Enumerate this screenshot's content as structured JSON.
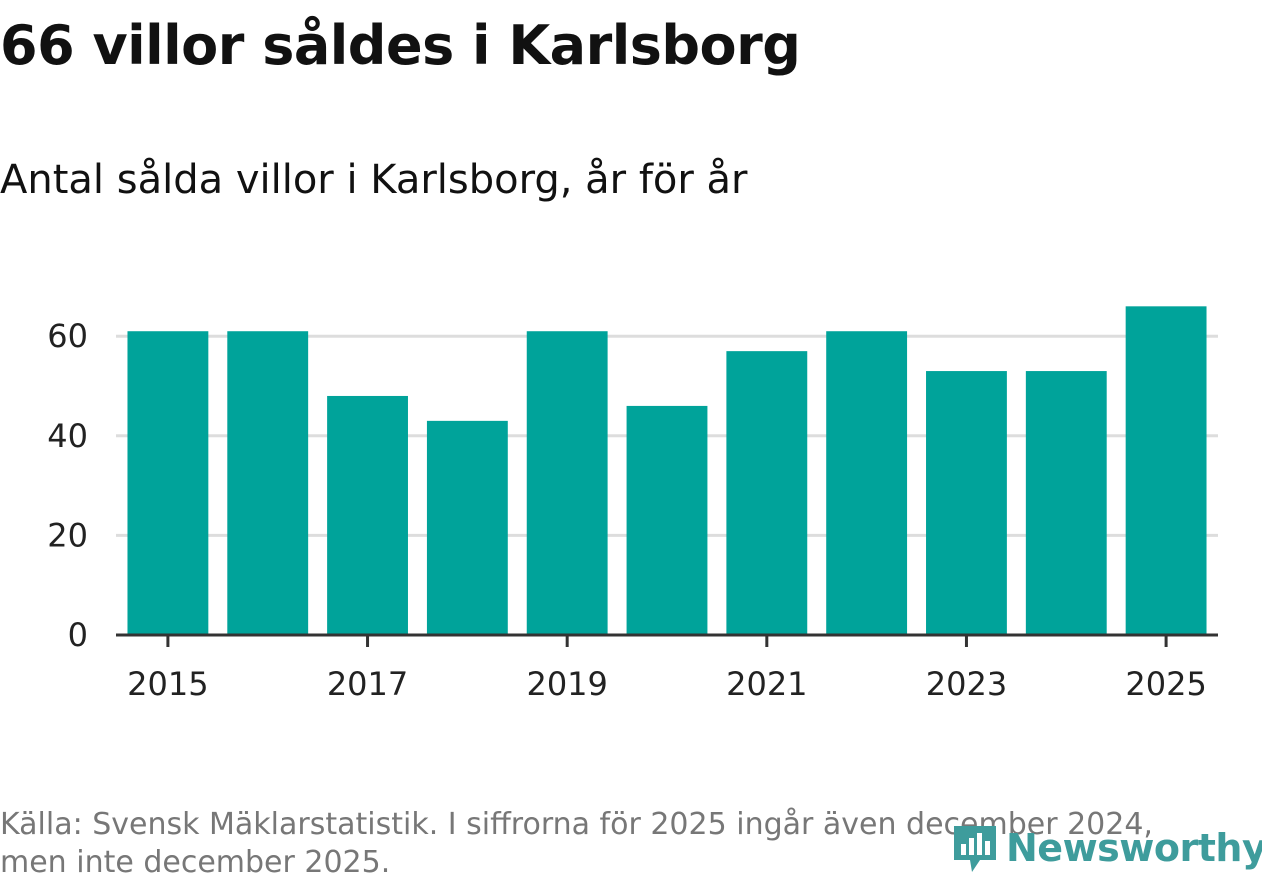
{
  "header": {
    "title": "66 villor såldes i Karlsborg",
    "subtitle": "Antal sålda villor i Karlsborg, år för år"
  },
  "chart_data": {
    "type": "bar",
    "title": "66 villor såldes i Karlsborg",
    "subtitle": "Antal sålda villor i Karlsborg, år för år",
    "categories": [
      "2015",
      "2016",
      "2017",
      "2018",
      "2019",
      "2020",
      "2021",
      "2022",
      "2023",
      "2024",
      "2025"
    ],
    "values": [
      61,
      61,
      48,
      43,
      61,
      46,
      57,
      61,
      53,
      53,
      66
    ],
    "x_tick_labels": [
      "2015",
      "2017",
      "2019",
      "2021",
      "2023",
      "2025"
    ],
    "y_ticks": [
      0,
      20,
      40,
      60
    ],
    "y_tick_labels": [
      "0",
      "20",
      "40",
      "60"
    ],
    "ylim": [
      0,
      66
    ],
    "xlabel": "",
    "ylabel": "",
    "grid": true,
    "bar_color": "#00a39a",
    "grid_color": "#dddddd",
    "axis_color": "#333333"
  },
  "footer": {
    "source": "Källa: Svensk Mäklarstatistik. I siffrorna för 2025 ingår även december 2024, men inte december 2025.",
    "logo_text": "Newsworthy",
    "logo_color": "#3e9c9c"
  }
}
